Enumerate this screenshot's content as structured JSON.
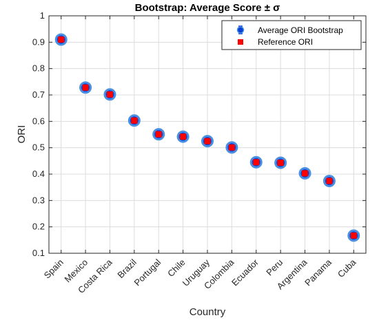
{
  "chart_data": {
    "type": "scatter",
    "title": "Bootstrap: Average Score ± σ",
    "xlabel": "Country",
    "ylabel": "ORI",
    "categories": [
      "Spain",
      "Mexico",
      "Costa Rica",
      "Brazil",
      "Portugal",
      "Chile",
      "Uruguay",
      "Colombia",
      "Ecuador",
      "Peru",
      "Argentina",
      "Panama",
      "Cuba"
    ],
    "ylim": [
      0.1,
      1
    ],
    "yticks": [
      "0.1",
      "0.2",
      "0.3",
      "0.4",
      "0.5",
      "0.6",
      "0.7",
      "0.8",
      "0.9",
      "1"
    ],
    "grid": true,
    "legend_position": "top-right",
    "series": [
      {
        "name": "Average ORI Bootstrap",
        "marker": "circle",
        "color": "#0a3fd6",
        "edge_color": "#4a90e2",
        "values": [
          0.91,
          0.728,
          0.702,
          0.603,
          0.551,
          0.542,
          0.525,
          0.501,
          0.445,
          0.443,
          0.403,
          0.374,
          0.167
        ]
      },
      {
        "name": "Reference ORI",
        "marker": "square",
        "color": "#ff0000",
        "values": [
          0.91,
          0.728,
          0.702,
          0.603,
          0.551,
          0.542,
          0.525,
          0.501,
          0.445,
          0.443,
          0.403,
          0.374,
          0.167
        ]
      }
    ]
  }
}
